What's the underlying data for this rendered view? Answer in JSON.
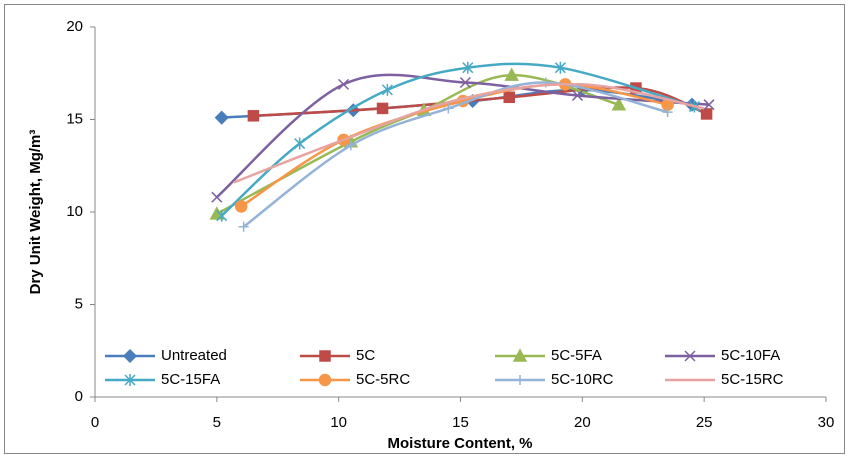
{
  "chart_data": {
    "type": "line",
    "x_label": "Moisture Content, %",
    "y_label": "Dry Unit Weight, Mg/m³",
    "xlim": [
      0,
      30
    ],
    "xticks": [
      0,
      5,
      10,
      15,
      20,
      25,
      30
    ],
    "ylim": [
      0,
      20
    ],
    "yticks": [
      0,
      5,
      10,
      15,
      20
    ],
    "smooth": true,
    "series": [
      {
        "name": "Untreated",
        "color": "#4a7ebb",
        "marker": "diamond",
        "x": [
          5.2,
          10.6,
          15.5,
          20.0,
          24.5
        ],
        "values": [
          15.1,
          15.5,
          16.0,
          16.6,
          15.8
        ]
      },
      {
        "name": "5C",
        "color": "#be4b48",
        "marker": "square",
        "x": [
          6.5,
          11.8,
          17.0,
          22.2,
          25.1
        ],
        "values": [
          15.2,
          15.6,
          16.2,
          16.7,
          15.3
        ]
      },
      {
        "name": "5C-5FA",
        "color": "#98b954",
        "marker": "triangle",
        "x": [
          5.0,
          10.5,
          13.5,
          17.1,
          21.5
        ],
        "values": [
          9.9,
          13.8,
          15.5,
          17.4,
          15.8
        ]
      },
      {
        "name": "5C-10FA",
        "color": "#7d60a0",
        "marker": "cross",
        "x": [
          5.0,
          10.2,
          15.2,
          19.8,
          25.2
        ],
        "values": [
          10.8,
          16.9,
          17.0,
          16.3,
          15.8
        ]
      },
      {
        "name": "5C-15FA",
        "color": "#46aac5",
        "marker": "star",
        "x": [
          5.2,
          8.4,
          12.0,
          15.3,
          19.1,
          24.6
        ],
        "values": [
          9.8,
          13.7,
          16.6,
          17.8,
          17.8,
          15.7
        ]
      },
      {
        "name": "5C-5RC",
        "color": "#f79646",
        "marker": "circle",
        "x": [
          6.0,
          10.2,
          15.1,
          19.3,
          23.5
        ],
        "values": [
          10.3,
          13.9,
          16.0,
          16.9,
          15.8
        ]
      },
      {
        "name": "5C-10RC",
        "color": "#95b3d7",
        "marker": "plus",
        "x": [
          6.1,
          10.5,
          14.5,
          18.5,
          23.5
        ],
        "values": [
          9.2,
          13.6,
          15.6,
          17.0,
          15.4
        ]
      },
      {
        "name": "5C-15RC",
        "color": "#e6a3a1",
        "x": [
          5.7,
          10.0,
          15.0,
          20.0,
          25.0
        ],
        "values": [
          11.6,
          13.8,
          16.1,
          16.9,
          15.6
        ]
      }
    ]
  }
}
